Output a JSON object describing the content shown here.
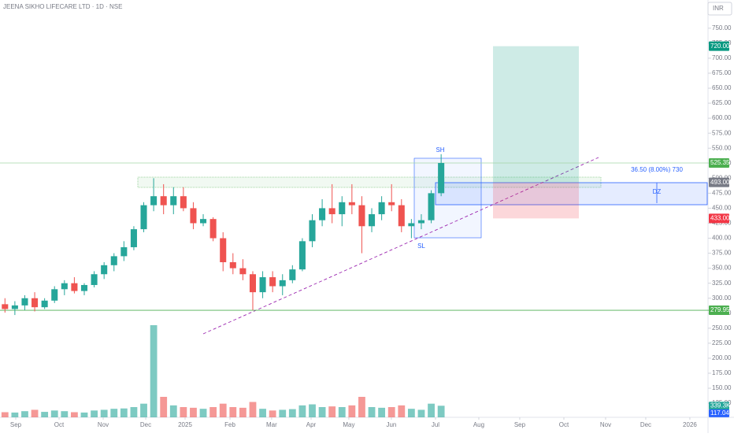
{
  "chart_data": {
    "type": "candlestick",
    "title": "JEENA SIKHO LIFECARE LTD · 1D · NSE",
    "currency": "INR",
    "x": [
      0,
      1,
      2,
      3,
      4,
      5,
      6,
      7,
      8,
      9,
      10,
      11,
      12,
      13,
      14,
      15,
      16,
      17,
      18,
      19,
      20,
      21,
      22,
      23,
      24,
      25,
      26,
      27,
      28,
      29,
      30,
      31,
      32,
      33,
      34,
      35,
      36,
      37,
      38,
      39,
      40,
      41,
      42,
      43,
      44
    ],
    "open": [
      290,
      282,
      288,
      300,
      285,
      296,
      315,
      325,
      312,
      322,
      340,
      355,
      370,
      385,
      415,
      455,
      470,
      455,
      470,
      450,
      425,
      432,
      400,
      360,
      350,
      340,
      310,
      335,
      320,
      330,
      348,
      395,
      430,
      450,
      440,
      460,
      455,
      420,
      440,
      460,
      455,
      420,
      425,
      430,
      475
    ],
    "high": [
      300,
      295,
      305,
      310,
      300,
      320,
      330,
      335,
      325,
      345,
      360,
      375,
      395,
      420,
      460,
      500,
      490,
      485,
      485,
      460,
      440,
      435,
      410,
      375,
      365,
      345,
      345,
      345,
      340,
      355,
      400,
      440,
      465,
      490,
      470,
      490,
      470,
      450,
      470,
      490,
      465,
      432,
      440,
      480,
      540
    ],
    "low": [
      276,
      272,
      280,
      278,
      282,
      292,
      305,
      308,
      305,
      318,
      332,
      345,
      362,
      380,
      410,
      445,
      440,
      440,
      445,
      415,
      420,
      395,
      345,
      340,
      330,
      280,
      300,
      310,
      305,
      325,
      345,
      385,
      420,
      425,
      420,
      440,
      375,
      410,
      430,
      445,
      410,
      400,
      415,
      425,
      470
    ],
    "close": [
      282,
      288,
      300,
      285,
      296,
      315,
      325,
      312,
      322,
      340,
      355,
      370,
      385,
      415,
      455,
      470,
      455,
      470,
      450,
      425,
      432,
      400,
      360,
      350,
      340,
      310,
      335,
      320,
      330,
      348,
      395,
      430,
      450,
      440,
      460,
      455,
      420,
      440,
      460,
      455,
      420,
      425,
      430,
      475,
      525.35
    ],
    "volume": [
      150,
      140,
      180,
      220,
      160,
      200,
      180,
      150,
      140,
      200,
      220,
      250,
      260,
      300,
      400,
      2700,
      600,
      350,
      300,
      280,
      250,
      300,
      400,
      300,
      280,
      450,
      250,
      200,
      220,
      240,
      350,
      380,
      300,
      320,
      300,
      350,
      600,
      300,
      280,
      300,
      350,
      250,
      220,
      400,
      339.3
    ],
    "up_color": "#26a69a",
    "down_color": "#ef5350",
    "xlim": [
      -0.5,
      71
    ],
    "xticks": [
      {
        "value": 1.09,
        "label": "Sep"
      },
      {
        "value": 5.46,
        "label": "Oct"
      },
      {
        "value": 9.91,
        "label": "Nov"
      },
      {
        "value": 14.2,
        "label": "Dec"
      },
      {
        "value": 18.17,
        "label": "2025"
      },
      {
        "value": 22.7,
        "label": "Feb"
      },
      {
        "value": 26.9,
        "label": "Mar"
      },
      {
        "value": 30.88,
        "label": "Apr"
      },
      {
        "value": 34.69,
        "label": "May"
      },
      {
        "value": 38.98,
        "label": "Jun"
      },
      {
        "value": 43.43,
        "label": "Jul"
      },
      {
        "value": 47.8,
        "label": "Aug"
      },
      {
        "value": 51.93,
        "label": "Sep"
      },
      {
        "value": 56.38,
        "label": "Oct"
      },
      {
        "value": 60.59,
        "label": "Nov"
      },
      {
        "value": 64.64,
        "label": "Dec"
      },
      {
        "value": 69.09,
        "label": "2026"
      }
    ],
    "ylim": [
      101.5,
      797
    ],
    "yticks": [
      {
        "value": 125,
        "label": "125.00"
      },
      {
        "value": 150,
        "label": "150.00"
      },
      {
        "value": 175,
        "label": "175.00"
      },
      {
        "value": 200,
        "label": "200.00"
      },
      {
        "value": 225,
        "label": "225.00"
      },
      {
        "value": 250,
        "label": "250.00"
      },
      {
        "value": 275,
        "label": "275.00"
      },
      {
        "value": 300,
        "label": "300.00"
      },
      {
        "value": 325,
        "label": "325.00"
      },
      {
        "value": 350,
        "label": "350.00"
      },
      {
        "value": 375,
        "label": "375.00"
      },
      {
        "value": 400,
        "label": "400.00"
      },
      {
        "value": 425,
        "label": "425.00"
      },
      {
        "value": 450,
        "label": "450.00"
      },
      {
        "value": 475,
        "label": "475.00"
      },
      {
        "value": 500,
        "label": "500.00"
      },
      {
        "value": 525,
        "label": "525.00"
      },
      {
        "value": 550,
        "label": "550.00"
      },
      {
        "value": 575,
        "label": "575.00"
      },
      {
        "value": 600,
        "label": "600.00"
      },
      {
        "value": 625,
        "label": "625.00"
      },
      {
        "value": 650,
        "label": "650.00"
      },
      {
        "value": 675,
        "label": "675.00"
      },
      {
        "value": 700,
        "label": "700.00"
      },
      {
        "value": 725,
        "label": "725.00"
      },
      {
        "value": 750,
        "label": "750.00"
      }
    ],
    "vlim": [
      0,
      3000
    ],
    "price_labels": [
      {
        "value": 720,
        "label": "720.00",
        "color": "#089981"
      },
      {
        "value": 525.35,
        "label": "525.35",
        "color": "#4caf50"
      },
      {
        "value": 493,
        "label": "493.00",
        "color": "#787b86"
      },
      {
        "value": 433,
        "label": "433.00",
        "color": "#f23645"
      },
      {
        "value": 279.95,
        "label": "279.95",
        "color": "#4caf50"
      }
    ],
    "volume_labels": [
      {
        "value": 339.3,
        "label": "339.3K",
        "color": "#26a69a"
      },
      {
        "value": 117.04,
        "label": "117.04K",
        "color": "#2962ff"
      }
    ],
    "annotations": {
      "swing_high": "SH",
      "swing_low": "SL",
      "zone": "DZ",
      "measure": "36.50 (8.00%) 730"
    }
  }
}
